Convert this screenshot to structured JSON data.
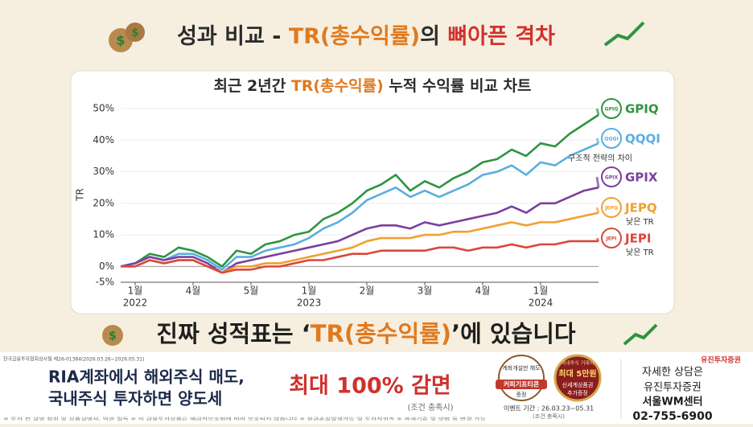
{
  "header": {
    "title": [
      {
        "text": "성과 비교 - ",
        "color": "#2b2b2b"
      },
      {
        "text": "TR(총수익률)",
        "color": "#e07a1f"
      },
      {
        "text": "의 ",
        "color": "#2b2b2b"
      },
      {
        "text": "뼈아픈 격차",
        "color": "#d0312d"
      }
    ]
  },
  "chart_data": {
    "type": "line",
    "title": [
      {
        "text": "최근 2년간 ",
        "color": "#2b2b2b"
      },
      {
        "text": "TR(총수익률)",
        "color": "#e07a1f"
      },
      {
        "text": " 누적 수익률 비교 차트",
        "color": "#2b2b2b"
      }
    ],
    "y_label": "TR",
    "categories": [
      null,
      "1월",
      null,
      null,
      null,
      "4월",
      null,
      null,
      null,
      "5월",
      null,
      null,
      null,
      "1월",
      null,
      null,
      null,
      "2월",
      null,
      null,
      null,
      "3월",
      null,
      null,
      null,
      "4월",
      null,
      null,
      null,
      "1월",
      null,
      null,
      null,
      null
    ],
    "year_labels": [
      null,
      "2022",
      null,
      null,
      null,
      null,
      null,
      null,
      null,
      null,
      null,
      null,
      null,
      "2023",
      null,
      null,
      null,
      null,
      null,
      null,
      null,
      null,
      null,
      null,
      null,
      null,
      null,
      null,
      null,
      "2024",
      null,
      null,
      null,
      null
    ],
    "ylim": [
      -5,
      50
    ],
    "yticks": [
      {
        "value": -5,
        "label": "-5%"
      },
      {
        "value": 0,
        "label": "0%"
      },
      {
        "value": 10,
        "label": "10%"
      },
      {
        "value": 20,
        "label": "20%"
      },
      {
        "value": 30,
        "label": "30%"
      },
      {
        "value": 40,
        "label": "40%"
      },
      {
        "value": 50,
        "label": "50%"
      }
    ],
    "grid": true,
    "annotation": "구조적 전략의 차이",
    "series": [
      {
        "name": "GPIQ",
        "color": "#2e9440",
        "values": [
          0,
          1,
          4,
          3,
          6,
          5,
          3,
          0,
          5,
          4,
          7,
          8,
          10,
          11,
          15,
          17,
          20,
          24,
          26,
          29,
          24,
          27,
          25,
          28,
          30,
          33,
          34,
          37,
          35,
          39,
          38,
          42,
          45,
          48
        ]
      },
      {
        "name": "QQQI",
        "color": "#5aaee0",
        "values": [
          0,
          1,
          3,
          2,
          4,
          4,
          2,
          -1,
          3,
          3,
          5,
          6,
          7,
          9,
          12,
          14,
          17,
          21,
          23,
          25,
          22,
          24,
          22,
          24,
          26,
          29,
          30,
          32,
          29,
          33,
          32,
          35,
          37,
          39
        ]
      },
      {
        "name": "GPIX",
        "color": "#7b3fa0",
        "values": [
          0,
          1,
          3,
          2,
          3,
          3,
          1,
          -2,
          1,
          2,
          3,
          4,
          5,
          6,
          7,
          8,
          10,
          12,
          13,
          13,
          12,
          14,
          13,
          14,
          15,
          16,
          17,
          19,
          17,
          20,
          20,
          22,
          24,
          25
        ]
      },
      {
        "name": "JEPQ",
        "color": "#f0a030",
        "note": "낮은 TR",
        "values": [
          0,
          0,
          2,
          1,
          2,
          2,
          0,
          -2,
          0,
          0,
          1,
          1,
          2,
          3,
          4,
          5,
          6,
          8,
          9,
          9,
          9,
          10,
          10,
          11,
          11,
          12,
          13,
          14,
          13,
          14,
          14,
          15,
          16,
          17
        ]
      },
      {
        "name": "JEPI",
        "color": "#d9483b",
        "note": "낮은 TR",
        "values": [
          0,
          0,
          2,
          1,
          2,
          2,
          0,
          -2,
          -1,
          -1,
          0,
          0,
          1,
          2,
          2,
          3,
          4,
          4,
          5,
          5,
          5,
          5,
          6,
          6,
          5,
          6,
          6,
          7,
          6,
          7,
          7,
          8,
          8,
          8
        ]
      }
    ]
  },
  "subtitle": [
    {
      "text": "진짜 성적표는 ‘",
      "color": "#1f1f1f"
    },
    {
      "text": "TR(총수익률)",
      "color": "#e07a1f"
    },
    {
      "text": "’에 있습니다",
      "color": "#1f1f1f"
    }
  ],
  "ad": {
    "notice": "한국금융투자협회심사필 제26-01384(2026.03.26~2026.05.31)",
    "headline": [
      "RIA계좌에서 해외주식 매도,",
      "국내주식 투자하면 양도세"
    ],
    "benefit": "최대 100% 감면",
    "benefit_note": "(조건 충족시)",
    "badge1": [
      "계좌개설만 해도",
      "커피기프티콘",
      "증정"
    ],
    "badge2": [
      "국내주식 거래시",
      "최대 5만원",
      "신세계상품권",
      "추가증정"
    ],
    "period": "이벤트 기간 : 26.03.23~05.31",
    "period_note": "(조건 충족시)",
    "contact": [
      "자세한 상담은",
      "유진투자증권",
      "서울WM센터",
      "02-755-6900"
    ],
    "logo": "유진투자증권",
    "disclaimer": "※ 투자 전 설명 청취 및 상품설명서, 약관 필독 ※ 이 금융투자상품은 예금자보호법에 따라 보호되지 않습니다 ※ 원금손실발생가능 및 투자자귀속 ※ 과세기준 및 방법 등 변경 가능"
  }
}
